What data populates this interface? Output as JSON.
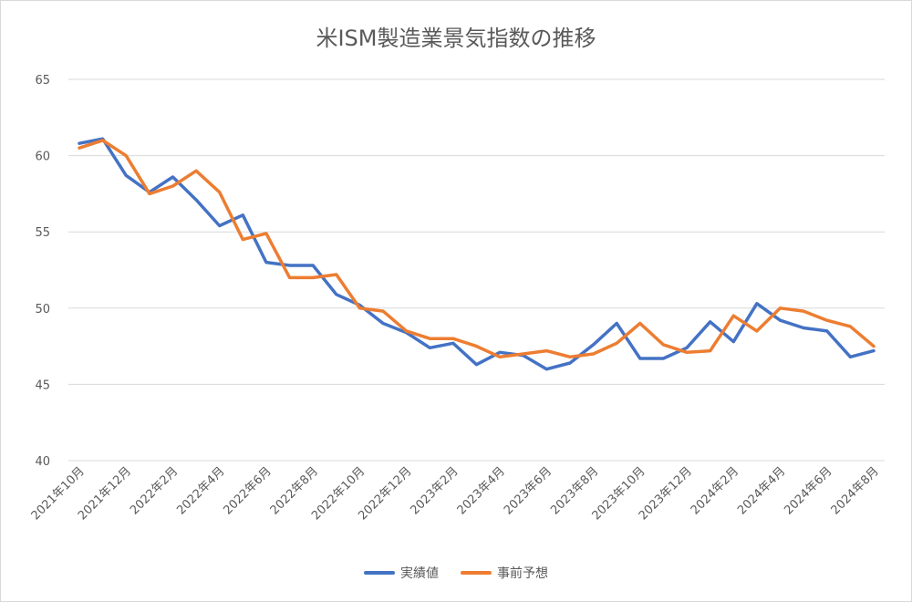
{
  "chart_data": {
    "type": "line",
    "title": "米ISM製造業景気指数の推移",
    "xlabel": "",
    "ylabel": "",
    "ylim": [
      40,
      65
    ],
    "yticks": [
      "40",
      "45",
      "50",
      "55",
      "60",
      "65"
    ],
    "grid": true,
    "legend_position": "bottom",
    "categories": [
      "2021年10月",
      "2021年11月",
      "2021年12月",
      "2022年1月",
      "2022年2月",
      "2022年3月",
      "2022年4月",
      "2022年5月",
      "2022年6月",
      "2022年7月",
      "2022年8月",
      "2022年9月",
      "2022年10月",
      "2022年11月",
      "2022年12月",
      "2023年1月",
      "2023年2月",
      "2023年3月",
      "2023年4月",
      "2023年5月",
      "2023年6月",
      "2023年7月",
      "2023年8月",
      "2023年9月",
      "2023年10月",
      "2023年11月",
      "2023年12月",
      "2024年1月",
      "2024年2月",
      "2024年3月",
      "2024年4月",
      "2024年5月",
      "2024年6月",
      "2024年7月",
      "2024年8月"
    ],
    "xtick_labels": [
      "2021年10月",
      "2021年12月",
      "2022年2月",
      "2022年4月",
      "2022年6月",
      "2022年8月",
      "2022年10月",
      "2022年12月",
      "2023年2月",
      "2023年4月",
      "2023年6月",
      "2023年8月",
      "2023年10月",
      "2023年12月",
      "2024年2月",
      "2024年4月",
      "2024年6月",
      "2024年8月"
    ],
    "series": [
      {
        "name": "実績値",
        "color": "#4472c4",
        "values": [
          60.8,
          61.1,
          58.7,
          57.6,
          58.6,
          57.1,
          55.4,
          56.1,
          53.0,
          52.8,
          52.8,
          50.9,
          50.2,
          49.0,
          48.4,
          47.4,
          47.7,
          46.3,
          47.1,
          46.9,
          46.0,
          46.4,
          47.6,
          49.0,
          46.7,
          46.7,
          47.4,
          49.1,
          47.8,
          50.3,
          49.2,
          48.7,
          48.5,
          46.8,
          47.2
        ]
      },
      {
        "name": "事前予想",
        "color": "#ed7d31",
        "values": [
          60.5,
          61.0,
          60.0,
          57.5,
          58.0,
          59.0,
          57.6,
          54.5,
          54.9,
          52.0,
          52.0,
          52.2,
          50.0,
          49.8,
          48.5,
          48.0,
          48.0,
          47.5,
          46.8,
          47.0,
          47.2,
          46.8,
          47.0,
          47.7,
          49.0,
          47.6,
          47.1,
          47.2,
          49.5,
          48.5,
          50.0,
          49.8,
          49.2,
          48.8,
          47.5
        ]
      }
    ]
  }
}
